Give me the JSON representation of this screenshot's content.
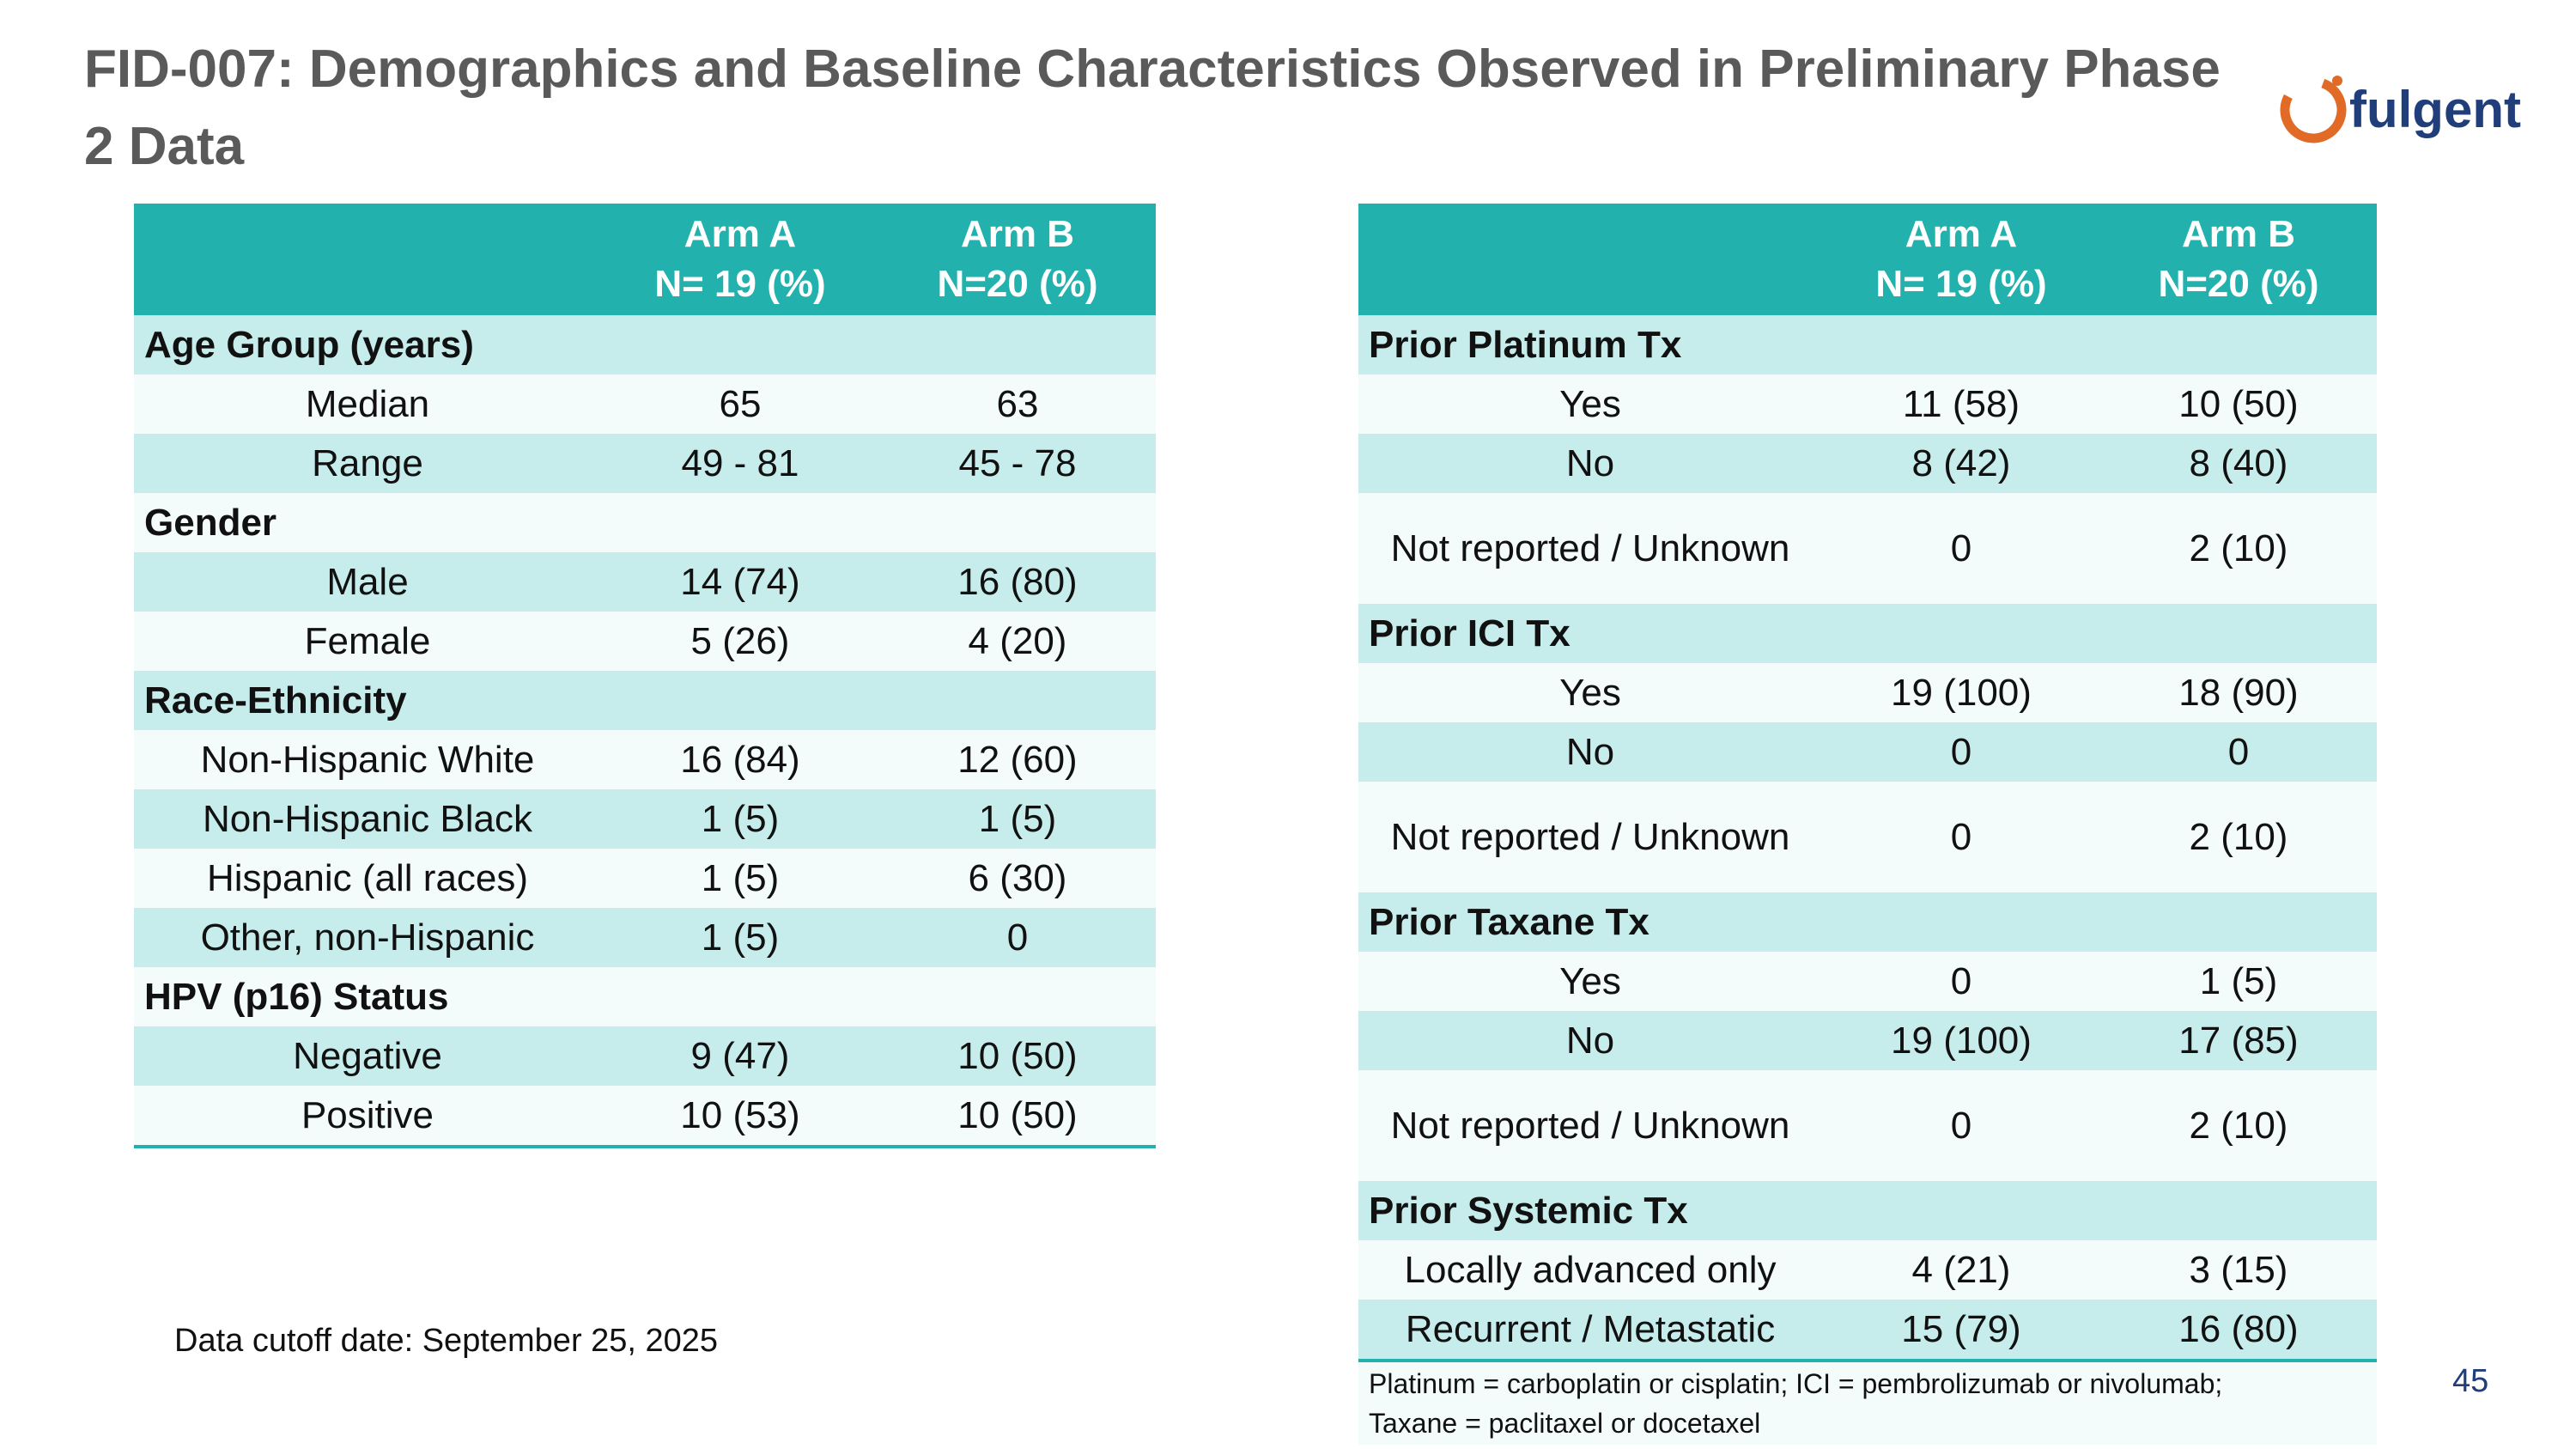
{
  "title": "FID-007: Demographics and Baseline Characteristics Observed in Preliminary Phase 2 Data",
  "logo": {
    "text": "fulgent",
    "icon": "fulgent-ring-logo-icon",
    "accent": "#e06a26"
  },
  "colors": {
    "header": "#22b1ac",
    "row_dark": "#c6eceb",
    "row_light": "#f3fbfb",
    "title": "#5a5a5a"
  },
  "header": {
    "arm_a": "Arm A",
    "arm_a_n": "N= 19 (%)",
    "arm_b": "Arm B",
    "arm_b_n": "N=20 (%)"
  },
  "left_table": [
    {
      "type": "section",
      "label": "Age Group (years)"
    },
    {
      "type": "row",
      "label": "Median",
      "a": "65",
      "b": "63"
    },
    {
      "type": "row",
      "label": "Range",
      "a": "49 - 81",
      "b": "45 - 78"
    },
    {
      "type": "section",
      "label": "Gender"
    },
    {
      "type": "row",
      "label": "Male",
      "a": "14 (74)",
      "b": "16 (80)"
    },
    {
      "type": "row",
      "label": "Female",
      "a": "5 (26)",
      "b": "4 (20)"
    },
    {
      "type": "section",
      "label": "Race-Ethnicity"
    },
    {
      "type": "row",
      "label": "Non-Hispanic White",
      "a": "16 (84)",
      "b": "12 (60)"
    },
    {
      "type": "row",
      "label": "Non-Hispanic Black",
      "a": "1 (5)",
      "b": "1 (5)"
    },
    {
      "type": "row",
      "label": "Hispanic (all races)",
      "a": "1 (5)",
      "b": "6 (30)"
    },
    {
      "type": "row",
      "label": "Other, non-Hispanic",
      "a": "1 (5)",
      "b": "0"
    },
    {
      "type": "section",
      "label": "HPV (p16) Status"
    },
    {
      "type": "row",
      "label": "Negative",
      "a": "9 (47)",
      "b": "10 (50)"
    },
    {
      "type": "row",
      "label": "Positive",
      "a": "10 (53)",
      "b": "10 (50)"
    }
  ],
  "right_table": [
    {
      "type": "section",
      "label": "Prior Platinum Tx"
    },
    {
      "type": "row",
      "label": "Yes",
      "a": "11 (58)",
      "b": "10 (50)"
    },
    {
      "type": "row",
      "label": "No",
      "a": "8 (42)",
      "b": "8 (40)"
    },
    {
      "type": "row",
      "label": "Not reported / Unknown",
      "a": "0",
      "b": "2 (10)",
      "tall": true
    },
    {
      "type": "section",
      "label": "Prior ICI Tx"
    },
    {
      "type": "row",
      "label": "Yes",
      "a": "19 (100)",
      "b": "18 (90)"
    },
    {
      "type": "row",
      "label": "No",
      "a": "0",
      "b": "0"
    },
    {
      "type": "row",
      "label": "Not reported / Unknown",
      "a": "0",
      "b": "2 (10)",
      "tall": true
    },
    {
      "type": "section",
      "label": "Prior Taxane Tx"
    },
    {
      "type": "row",
      "label": "Yes",
      "a": "0",
      "b": "1 (5)"
    },
    {
      "type": "row",
      "label": "No",
      "a": "19 (100)",
      "b": "17 (85)"
    },
    {
      "type": "row",
      "label": "Not reported / Unknown",
      "a": "0",
      "b": "2 (10)",
      "tall": true
    },
    {
      "type": "section",
      "label": "Prior Systemic Tx"
    },
    {
      "type": "row",
      "label": "Locally advanced only",
      "a": "4 (21)",
      "b": "3 (15)"
    },
    {
      "type": "row",
      "label": "Recurrent / Metastatic",
      "a": "15 (79)",
      "b": "16 (80)"
    }
  ],
  "footnote_line1": "Platinum = carboplatin or cisplatin; ICI = pembrolizumab or nivolumab;",
  "footnote_line2": "Taxane = paclitaxel or docetaxel",
  "cutoff": "Data cutoff date: September 25, 2025",
  "page_number": "45"
}
